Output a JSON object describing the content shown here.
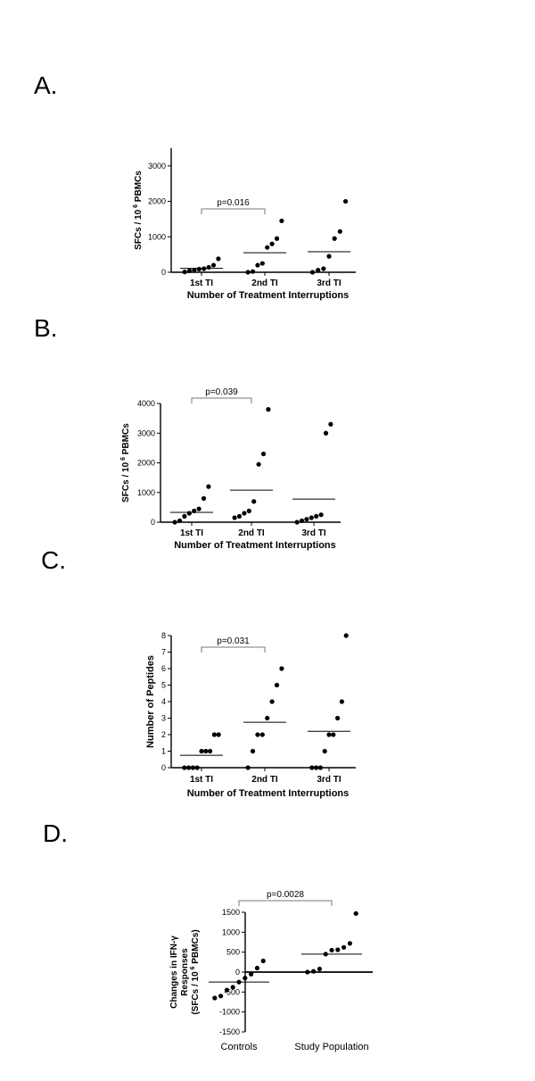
{
  "panels": {
    "a": "A.",
    "b": "B.",
    "c": "C.",
    "d": "D."
  },
  "chart_data": [
    {
      "type": "scatter",
      "panel": "A.",
      "categories": [
        "1st TI",
        "2nd TI",
        "3rd TI"
      ],
      "xlabel": "Number of Treatment Interruptions",
      "ylabel_main": "SFCs / 10",
      "ylabel_sup": "6",
      "ylabel_tail": " PBMCs",
      "ylim": [
        0,
        3500
      ],
      "yticks": [
        0,
        1000,
        2000,
        3000
      ],
      "series": [
        {
          "values": [
            10,
            40,
            60,
            90,
            100,
            140,
            200,
            380
          ]
        },
        {
          "values": [
            0,
            20,
            200,
            250,
            700,
            800,
            950,
            1450
          ]
        },
        {
          "values": [
            0,
            60,
            100,
            450,
            950,
            1150,
            2000
          ]
        }
      ],
      "medians": [
        110,
        550,
        580
      ],
      "comparison": {
        "from": 0,
        "to": 1,
        "label": "p=0.016"
      }
    },
    {
      "type": "scatter",
      "panel": "B.",
      "categories": [
        "1st TI",
        "2nd TI",
        "3rd TI"
      ],
      "xlabel": "Number of Treatment Interruptions",
      "ylabel_main": "SFCs / 10",
      "ylabel_sup": "6",
      "ylabel_tail": " PBMCs",
      "ylim": [
        0,
        4000
      ],
      "yticks": [
        0,
        1000,
        2000,
        3000,
        4000
      ],
      "series": [
        {
          "values": [
            0,
            50,
            200,
            300,
            380,
            450,
            800,
            1200
          ]
        },
        {
          "values": [
            150,
            200,
            300,
            380,
            700,
            1950,
            2300,
            3800
          ]
        },
        {
          "values": [
            0,
            50,
            100,
            150,
            200,
            250,
            3000,
            3300
          ]
        }
      ],
      "medians": [
        330,
        1080,
        780
      ],
      "comparison": {
        "from": 0,
        "to": 1,
        "label": "p=0.039"
      }
    },
    {
      "type": "scatter",
      "panel": "C.",
      "categories": [
        "1st TI",
        "2nd TI",
        "3rd TI"
      ],
      "xlabel": "Number of Treatment Interruptions",
      "ylabel": "Number of Peptides",
      "ylim": [
        0,
        8
      ],
      "yticks": [
        0,
        1,
        2,
        3,
        4,
        5,
        6,
        7,
        8
      ],
      "series": [
        {
          "values": [
            0,
            0,
            0,
            0,
            1,
            1,
            1,
            2,
            2
          ]
        },
        {
          "values": [
            0,
            1,
            2,
            2,
            3,
            4,
            5,
            6
          ]
        },
        {
          "values": [
            0,
            0,
            0,
            1,
            2,
            2,
            3,
            4,
            8
          ]
        }
      ],
      "medians": [
        0.75,
        2.75,
        2.2
      ],
      "comparison": {
        "from": 0,
        "to": 1,
        "label": "p=0.031"
      }
    },
    {
      "type": "scatter",
      "panel": "D.",
      "categories": [
        "Controls",
        "Study Population"
      ],
      "ylabel_line1": "Changes in IFN-γ",
      "ylabel_line2": "Responses",
      "ylabel_line3_main": "(SFCs / 10",
      "ylabel_line3_sup": "6",
      "ylabel_line3_tail": " PBMCs)",
      "ylim": [
        -1500,
        1500
      ],
      "yticks": [
        -1500,
        -1000,
        -500,
        0,
        500,
        1000,
        1500
      ],
      "series": [
        {
          "values": [
            -650,
            -600,
            -450,
            -380,
            -250,
            -150,
            -50,
            100,
            280
          ]
        },
        {
          "values": [
            0,
            20,
            80,
            450,
            550,
            560,
            620,
            720,
            1470
          ]
        }
      ],
      "medians": [
        -250,
        450
      ],
      "comparison": {
        "from": 0,
        "to": 1,
        "label": "p=0.0028"
      }
    }
  ]
}
